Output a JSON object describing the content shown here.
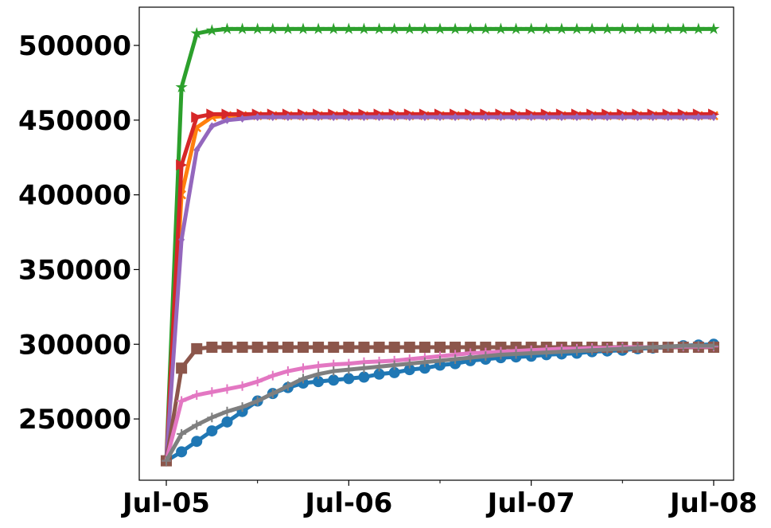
{
  "chart_data": {
    "type": "line",
    "x": [
      0,
      1,
      2,
      3,
      4,
      5,
      6,
      7,
      8,
      9,
      10,
      11,
      12,
      13,
      14,
      15,
      16,
      17,
      18,
      19,
      20,
      21,
      22,
      23,
      24,
      25,
      26,
      27,
      28,
      29,
      30,
      31,
      32,
      33,
      34,
      35,
      36
    ],
    "xlim": [
      -1.78,
      37.31
    ],
    "xticks": [
      {
        "value": 0,
        "label": "Jul-05"
      },
      {
        "value": 12,
        "label": "Jul-06"
      },
      {
        "value": 24,
        "label": "Jul-07"
      },
      {
        "value": 36,
        "label": "Jul-08"
      }
    ],
    "xminorticks": [
      6,
      18,
      30
    ],
    "ylim": [
      209000,
      525600
    ],
    "yticks": [
      250000,
      300000,
      350000,
      400000,
      450000,
      500000
    ],
    "series": [
      {
        "color": "#1f77b4",
        "marker": "circle",
        "values": [
          222000,
          228000,
          235000,
          242000,
          248000,
          255000,
          262000,
          267000,
          271000,
          274000,
          275000,
          276000,
          277000,
          278000,
          280000,
          281000,
          283000,
          284000,
          286000,
          287000,
          289000,
          290000,
          291000,
          291500,
          292000,
          293000,
          293500,
          294000,
          295000,
          295500,
          296000,
          297000,
          297500,
          298000,
          299000,
          299500,
          300000
        ]
      },
      {
        "color": "#ff7f0e",
        "marker": "x",
        "values": [
          222000,
          400000,
          445000,
          452000,
          453000,
          453000,
          453000,
          453000,
          453000,
          453000,
          453000,
          453000,
          453000,
          453000,
          453000,
          453000,
          453000,
          453000,
          453000,
          453000,
          453000,
          453000,
          453000,
          453000,
          453000,
          453000,
          453000,
          453000,
          453000,
          453000,
          453000,
          453000,
          453000,
          453000,
          453000,
          453000,
          453000
        ]
      },
      {
        "color": "#2ca02c",
        "marker": "star",
        "values": [
          222000,
          472000,
          508000,
          510000,
          511000,
          511000,
          511000,
          511000,
          511000,
          511000,
          511000,
          511000,
          511000,
          511000,
          511000,
          511000,
          511000,
          511000,
          511000,
          511000,
          511000,
          511000,
          511000,
          511000,
          511000,
          511000,
          511000,
          511000,
          511000,
          511000,
          511000,
          511000,
          511000,
          511000,
          511000,
          511000,
          511000
        ]
      },
      {
        "color": "#d62728",
        "marker": "tri-right",
        "values": [
          222000,
          420000,
          452000,
          454000,
          454000,
          454000,
          454000,
          454000,
          454000,
          454000,
          454000,
          454000,
          454000,
          454000,
          454000,
          454000,
          454000,
          454000,
          454000,
          454000,
          454000,
          454000,
          454000,
          454000,
          454000,
          454000,
          454000,
          454000,
          454000,
          454000,
          454000,
          454000,
          454000,
          454000,
          454000,
          454000,
          454000
        ]
      },
      {
        "color": "#9467bd",
        "marker": "diamond",
        "values": [
          222000,
          370000,
          430000,
          446000,
          450000,
          451000,
          452000,
          452000,
          452000,
          452000,
          452000,
          452000,
          452000,
          452000,
          452000,
          452000,
          452000,
          452000,
          452000,
          452000,
          452000,
          452000,
          452000,
          452000,
          452000,
          452000,
          452000,
          452000,
          452000,
          452000,
          452000,
          452000,
          452000,
          452000,
          452000,
          452000,
          452000
        ]
      },
      {
        "color": "#8c564b",
        "marker": "square",
        "values": [
          222000,
          284000,
          297000,
          298000,
          298000,
          298000,
          298000,
          298000,
          298000,
          298000,
          298000,
          298000,
          298000,
          298000,
          298000,
          298000,
          298000,
          298000,
          298000,
          298000,
          298000,
          298000,
          298000,
          298000,
          298000,
          298000,
          298000,
          298000,
          298000,
          298000,
          298000,
          298000,
          298000,
          298000,
          298000,
          298000,
          298000
        ]
      },
      {
        "color": "#e377c2",
        "marker": "plus",
        "values": [
          222000,
          262000,
          266000,
          268000,
          270000,
          272000,
          275000,
          279000,
          282000,
          284000,
          285500,
          286500,
          287000,
          288000,
          288500,
          289000,
          290000,
          291000,
          292000,
          293000,
          294000,
          294500,
          295000,
          295500,
          296000,
          296500,
          297000,
          297000,
          297500,
          297500,
          298000,
          298000,
          298000,
          298500,
          298500,
          298500,
          298500
        ]
      },
      {
        "color": "#7f7f7f",
        "marker": "plus",
        "values": [
          222000,
          240000,
          246000,
          251000,
          255000,
          258000,
          262000,
          267000,
          272000,
          277000,
          280000,
          282000,
          283000,
          284000,
          285000,
          286000,
          287000,
          288000,
          289000,
          290000,
          291000,
          292000,
          293000,
          293500,
          294000,
          294500,
          295000,
          295500,
          296000,
          296500,
          297000,
          297500,
          298000,
          298500,
          299000,
          299000,
          299000
        ]
      }
    ]
  }
}
